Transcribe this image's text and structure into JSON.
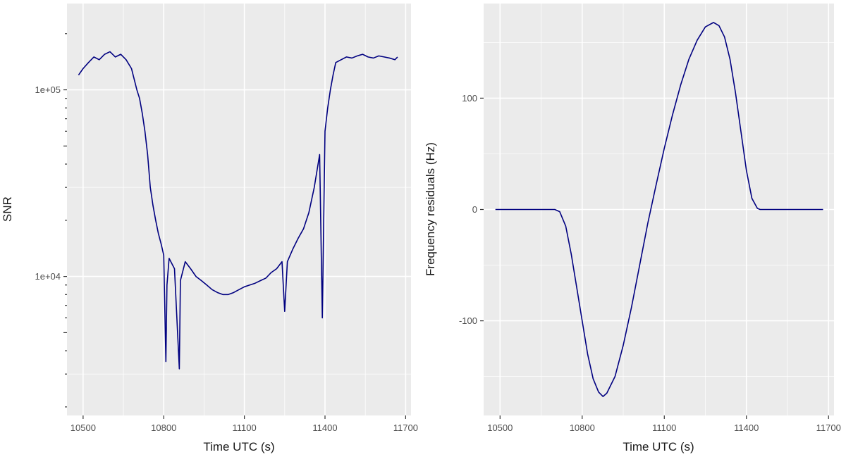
{
  "chart_data": [
    {
      "type": "line",
      "title": "",
      "xlabel": "Time UTC (s)",
      "ylabel": "SNR",
      "x_ticks": [
        10500,
        10800,
        11100,
        11400,
        11700
      ],
      "x_tick_labels": [
        "10500",
        "10800",
        "11100",
        "11400",
        "11700"
      ],
      "xlim": [
        10440,
        11720
      ],
      "y_scale": "log",
      "y_ticks": [
        10000,
        100000
      ],
      "y_tick_labels": [
        "1e+04",
        "1e+05"
      ],
      "ylim": [
        1800,
        290000
      ],
      "grid": true,
      "legend": "none",
      "line_color": "#000080",
      "series": [
        {
          "x": [
            10483,
            10500,
            10520,
            10540,
            10560,
            10580,
            10600,
            10620,
            10640,
            10660,
            10680,
            10700,
            10710,
            10720,
            10730,
            10740,
            10750,
            10760,
            10770,
            10780,
            10790,
            10800,
            10808,
            10812,
            10820,
            10840,
            10858,
            10862,
            10880,
            10900,
            10920,
            10940,
            10960,
            10980,
            11000,
            11020,
            11040,
            11060,
            11080,
            11100,
            11120,
            11140,
            11160,
            11180,
            11200,
            11220,
            11240,
            11250,
            11260,
            11280,
            11300,
            11320,
            11340,
            11360,
            11380,
            11390,
            11400,
            11410,
            11420,
            11430,
            11440,
            11460,
            11480,
            11500,
            11520,
            11540,
            11560,
            11580,
            11600,
            11620,
            11640,
            11660,
            11670
          ],
          "values": [
            120000,
            130000,
            140000,
            150000,
            145000,
            155000,
            160000,
            150000,
            155000,
            145000,
            130000,
            100000,
            90000,
            75000,
            60000,
            45000,
            30000,
            24000,
            20000,
            17000,
            15000,
            13000,
            3500,
            9000,
            12500,
            11000,
            3200,
            9500,
            12000,
            11000,
            10000,
            9500,
            9000,
            8500,
            8200,
            8000,
            8000,
            8200,
            8500,
            8800,
            9000,
            9200,
            9500,
            9800,
            10500,
            11000,
            12000,
            6500,
            12000,
            14000,
            16000,
            18000,
            22000,
            30000,
            45000,
            6000,
            60000,
            80000,
            100000,
            120000,
            140000,
            145000,
            150000,
            148000,
            152000,
            155000,
            150000,
            148000,
            152000,
            150000,
            148000,
            145000,
            150000
          ]
        }
      ]
    },
    {
      "type": "line",
      "title": "",
      "xlabel": "Time UTC (s)",
      "ylabel": "Frequency residuals (Hz)",
      "x_ticks": [
        10500,
        10800,
        11100,
        11400,
        11700
      ],
      "x_tick_labels": [
        "10500",
        "10800",
        "11100",
        "11400",
        "11700"
      ],
      "xlim": [
        10440,
        11720
      ],
      "y_ticks": [
        -100,
        0,
        100
      ],
      "y_tick_labels": [
        "-100",
        "0",
        "100"
      ],
      "ylim": [
        -185,
        185
      ],
      "grid": true,
      "legend": "none",
      "line_color": "#000080",
      "series": [
        {
          "x": [
            10483,
            10700,
            10718,
            10740,
            10760,
            10780,
            10800,
            10820,
            10840,
            10860,
            10876,
            10890,
            10920,
            10950,
            10980,
            11010,
            11040,
            11070,
            11100,
            11130,
            11160,
            11190,
            11220,
            11250,
            11280,
            11300,
            11320,
            11340,
            11360,
            11380,
            11400,
            11420,
            11440,
            11450,
            11460,
            11480,
            11500,
            11600,
            11680
          ],
          "values": [
            0,
            0,
            -2,
            -15,
            -40,
            -70,
            -100,
            -130,
            -152,
            -164,
            -168,
            -165,
            -150,
            -122,
            -88,
            -50,
            -12,
            22,
            55,
            85,
            112,
            135,
            152,
            164,
            168,
            165,
            155,
            135,
            105,
            70,
            35,
            10,
            1,
            0,
            0,
            0,
            0,
            0,
            0
          ]
        }
      ]
    }
  ]
}
